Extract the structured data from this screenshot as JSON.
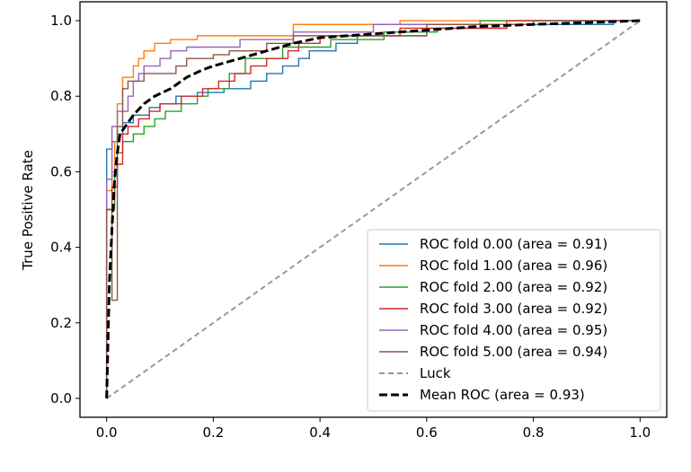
{
  "chart_data": {
    "type": "line",
    "title": "",
    "xlabel": "",
    "ylabel": "True Positive Rate",
    "xlim": [
      -0.05,
      1.05
    ],
    "ylim": [
      -0.05,
      1.05
    ],
    "xticks": [
      "0.0",
      "0.2",
      "0.4",
      "0.6",
      "0.8",
      "1.0"
    ],
    "yticks": [
      "0.0",
      "0.2",
      "0.4",
      "0.6",
      "0.8",
      "1.0"
    ],
    "grid": false,
    "legend_position": "lower-right",
    "series": [
      {
        "name": "ROC fold 0.00 (area = 0.91)",
        "color": "#1f77b4",
        "style": "solid",
        "points": [
          [
            0,
            0
          ],
          [
            0,
            0.66
          ],
          [
            0.01,
            0.66
          ],
          [
            0.01,
            0.68
          ],
          [
            0.02,
            0.68
          ],
          [
            0.02,
            0.7
          ],
          [
            0.03,
            0.7
          ],
          [
            0.03,
            0.73
          ],
          [
            0.05,
            0.73
          ],
          [
            0.05,
            0.75
          ],
          [
            0.08,
            0.75
          ],
          [
            0.08,
            0.77
          ],
          [
            0.1,
            0.77
          ],
          [
            0.1,
            0.78
          ],
          [
            0.13,
            0.78
          ],
          [
            0.13,
            0.8
          ],
          [
            0.17,
            0.8
          ],
          [
            0.17,
            0.81
          ],
          [
            0.22,
            0.81
          ],
          [
            0.22,
            0.82
          ],
          [
            0.27,
            0.82
          ],
          [
            0.27,
            0.84
          ],
          [
            0.3,
            0.84
          ],
          [
            0.3,
            0.86
          ],
          [
            0.33,
            0.86
          ],
          [
            0.33,
            0.88
          ],
          [
            0.36,
            0.88
          ],
          [
            0.36,
            0.9
          ],
          [
            0.38,
            0.9
          ],
          [
            0.38,
            0.92
          ],
          [
            0.43,
            0.92
          ],
          [
            0.43,
            0.94
          ],
          [
            0.47,
            0.94
          ],
          [
            0.47,
            0.96
          ],
          [
            0.6,
            0.96
          ],
          [
            0.6,
            0.98
          ],
          [
            0.75,
            0.98
          ],
          [
            0.75,
            0.99
          ],
          [
            0.95,
            0.99
          ],
          [
            0.95,
            1
          ],
          [
            1,
            1
          ]
        ]
      },
      {
        "name": "ROC fold 1.00 (area = 0.96)",
        "color": "#ff7f0e",
        "style": "solid",
        "points": [
          [
            0,
            0
          ],
          [
            0,
            0.55
          ],
          [
            0.01,
            0.55
          ],
          [
            0.01,
            0.6
          ],
          [
            0.015,
            0.6
          ],
          [
            0.015,
            0.68
          ],
          [
            0.02,
            0.68
          ],
          [
            0.02,
            0.78
          ],
          [
            0.03,
            0.78
          ],
          [
            0.03,
            0.85
          ],
          [
            0.05,
            0.85
          ],
          [
            0.05,
            0.88
          ],
          [
            0.06,
            0.88
          ],
          [
            0.06,
            0.9
          ],
          [
            0.07,
            0.9
          ],
          [
            0.07,
            0.92
          ],
          [
            0.09,
            0.92
          ],
          [
            0.09,
            0.94
          ],
          [
            0.12,
            0.94
          ],
          [
            0.12,
            0.95
          ],
          [
            0.17,
            0.95
          ],
          [
            0.17,
            0.96
          ],
          [
            0.35,
            0.96
          ],
          [
            0.35,
            0.99
          ],
          [
            0.55,
            0.99
          ],
          [
            0.55,
            1
          ],
          [
            1,
            1
          ]
        ]
      },
      {
        "name": "ROC fold 2.00 (area = 0.92)",
        "color": "#2ca02c",
        "style": "solid",
        "points": [
          [
            0,
            0
          ],
          [
            0,
            0.5
          ],
          [
            0.015,
            0.5
          ],
          [
            0.015,
            0.6
          ],
          [
            0.02,
            0.6
          ],
          [
            0.02,
            0.65
          ],
          [
            0.03,
            0.65
          ],
          [
            0.03,
            0.68
          ],
          [
            0.05,
            0.68
          ],
          [
            0.05,
            0.7
          ],
          [
            0.07,
            0.7
          ],
          [
            0.07,
            0.72
          ],
          [
            0.09,
            0.72
          ],
          [
            0.09,
            0.74
          ],
          [
            0.11,
            0.74
          ],
          [
            0.11,
            0.76
          ],
          [
            0.14,
            0.76
          ],
          [
            0.14,
            0.78
          ],
          [
            0.17,
            0.78
          ],
          [
            0.17,
            0.8
          ],
          [
            0.19,
            0.8
          ],
          [
            0.19,
            0.82
          ],
          [
            0.23,
            0.82
          ],
          [
            0.23,
            0.86
          ],
          [
            0.26,
            0.86
          ],
          [
            0.26,
            0.9
          ],
          [
            0.33,
            0.9
          ],
          [
            0.33,
            0.93
          ],
          [
            0.42,
            0.93
          ],
          [
            0.42,
            0.95
          ],
          [
            0.52,
            0.95
          ],
          [
            0.52,
            0.97
          ],
          [
            0.62,
            0.97
          ],
          [
            0.62,
            0.98
          ],
          [
            0.7,
            0.98
          ],
          [
            0.7,
            1
          ],
          [
            1,
            1
          ]
        ]
      },
      {
        "name": "ROC fold 3.00 (area = 0.92)",
        "color": "#d62728",
        "style": "solid",
        "points": [
          [
            0,
            0
          ],
          [
            0,
            0.5
          ],
          [
            0.01,
            0.5
          ],
          [
            0.01,
            0.56
          ],
          [
            0.02,
            0.56
          ],
          [
            0.02,
            0.62
          ],
          [
            0.03,
            0.62
          ],
          [
            0.03,
            0.7
          ],
          [
            0.04,
            0.7
          ],
          [
            0.04,
            0.72
          ],
          [
            0.06,
            0.72
          ],
          [
            0.06,
            0.74
          ],
          [
            0.08,
            0.74
          ],
          [
            0.08,
            0.76
          ],
          [
            0.1,
            0.76
          ],
          [
            0.1,
            0.78
          ],
          [
            0.14,
            0.78
          ],
          [
            0.14,
            0.8
          ],
          [
            0.18,
            0.8
          ],
          [
            0.18,
            0.82
          ],
          [
            0.21,
            0.82
          ],
          [
            0.21,
            0.84
          ],
          [
            0.24,
            0.84
          ],
          [
            0.24,
            0.86
          ],
          [
            0.27,
            0.86
          ],
          [
            0.27,
            0.88
          ],
          [
            0.3,
            0.88
          ],
          [
            0.3,
            0.9
          ],
          [
            0.34,
            0.9
          ],
          [
            0.34,
            0.92
          ],
          [
            0.36,
            0.92
          ],
          [
            0.36,
            0.94
          ],
          [
            0.4,
            0.94
          ],
          [
            0.4,
            0.96
          ],
          [
            0.55,
            0.96
          ],
          [
            0.55,
            0.98
          ],
          [
            0.75,
            0.98
          ],
          [
            0.75,
            1
          ],
          [
            1,
            1
          ]
        ]
      },
      {
        "name": "ROC fold 4.00 (area = 0.95)",
        "color": "#9467bd",
        "style": "solid",
        "points": [
          [
            0,
            0
          ],
          [
            0,
            0.58
          ],
          [
            0.01,
            0.58
          ],
          [
            0.01,
            0.72
          ],
          [
            0.02,
            0.72
          ],
          [
            0.02,
            0.76
          ],
          [
            0.04,
            0.76
          ],
          [
            0.04,
            0.8
          ],
          [
            0.05,
            0.8
          ],
          [
            0.05,
            0.84
          ],
          [
            0.06,
            0.84
          ],
          [
            0.06,
            0.86
          ],
          [
            0.07,
            0.86
          ],
          [
            0.07,
            0.88
          ],
          [
            0.1,
            0.88
          ],
          [
            0.1,
            0.9
          ],
          [
            0.12,
            0.9
          ],
          [
            0.12,
            0.92
          ],
          [
            0.15,
            0.92
          ],
          [
            0.15,
            0.93
          ],
          [
            0.25,
            0.93
          ],
          [
            0.25,
            0.95
          ],
          [
            0.35,
            0.95
          ],
          [
            0.35,
            0.97
          ],
          [
            0.5,
            0.97
          ],
          [
            0.5,
            0.99
          ],
          [
            0.8,
            0.99
          ],
          [
            0.8,
            1
          ],
          [
            1,
            1
          ]
        ]
      },
      {
        "name": "ROC fold 5.00 (area = 0.94)",
        "color": "#8c564b",
        "style": "solid",
        "points": [
          [
            0,
            0
          ],
          [
            0,
            0.5
          ],
          [
            0.01,
            0.5
          ],
          [
            0.01,
            0.26
          ],
          [
            0.02,
            0.26
          ],
          [
            0.02,
            0.72
          ],
          [
            0.03,
            0.72
          ],
          [
            0.03,
            0.82
          ],
          [
            0.04,
            0.82
          ],
          [
            0.04,
            0.84
          ],
          [
            0.07,
            0.84
          ],
          [
            0.07,
            0.86
          ],
          [
            0.13,
            0.86
          ],
          [
            0.13,
            0.88
          ],
          [
            0.15,
            0.88
          ],
          [
            0.15,
            0.9
          ],
          [
            0.2,
            0.9
          ],
          [
            0.2,
            0.91
          ],
          [
            0.23,
            0.91
          ],
          [
            0.23,
            0.92
          ],
          [
            0.3,
            0.92
          ],
          [
            0.3,
            0.94
          ],
          [
            0.35,
            0.94
          ],
          [
            0.35,
            0.96
          ],
          [
            0.6,
            0.96
          ],
          [
            0.6,
            0.99
          ],
          [
            0.8,
            0.99
          ],
          [
            0.8,
            1
          ],
          [
            1,
            1
          ]
        ]
      },
      {
        "name": "Luck",
        "color": "#999999",
        "style": "dashed",
        "points": [
          [
            0,
            0
          ],
          [
            1,
            1
          ]
        ]
      },
      {
        "name": "Mean ROC (area = 0.93)",
        "color": "#000000",
        "style": "dashed-bold",
        "points": [
          [
            0,
            0
          ],
          [
            0.005,
            0.3
          ],
          [
            0.01,
            0.45
          ],
          [
            0.015,
            0.58
          ],
          [
            0.02,
            0.65
          ],
          [
            0.025,
            0.7
          ],
          [
            0.035,
            0.72
          ],
          [
            0.05,
            0.75
          ],
          [
            0.07,
            0.78
          ],
          [
            0.09,
            0.8
          ],
          [
            0.12,
            0.82
          ],
          [
            0.15,
            0.85
          ],
          [
            0.18,
            0.87
          ],
          [
            0.2,
            0.88
          ],
          [
            0.25,
            0.9
          ],
          [
            0.3,
            0.92
          ],
          [
            0.35,
            0.94
          ],
          [
            0.4,
            0.955
          ],
          [
            0.5,
            0.965
          ],
          [
            0.6,
            0.975
          ],
          [
            0.7,
            0.985
          ],
          [
            0.8,
            0.99
          ],
          [
            0.9,
            0.995
          ],
          [
            1,
            1
          ]
        ]
      }
    ]
  }
}
